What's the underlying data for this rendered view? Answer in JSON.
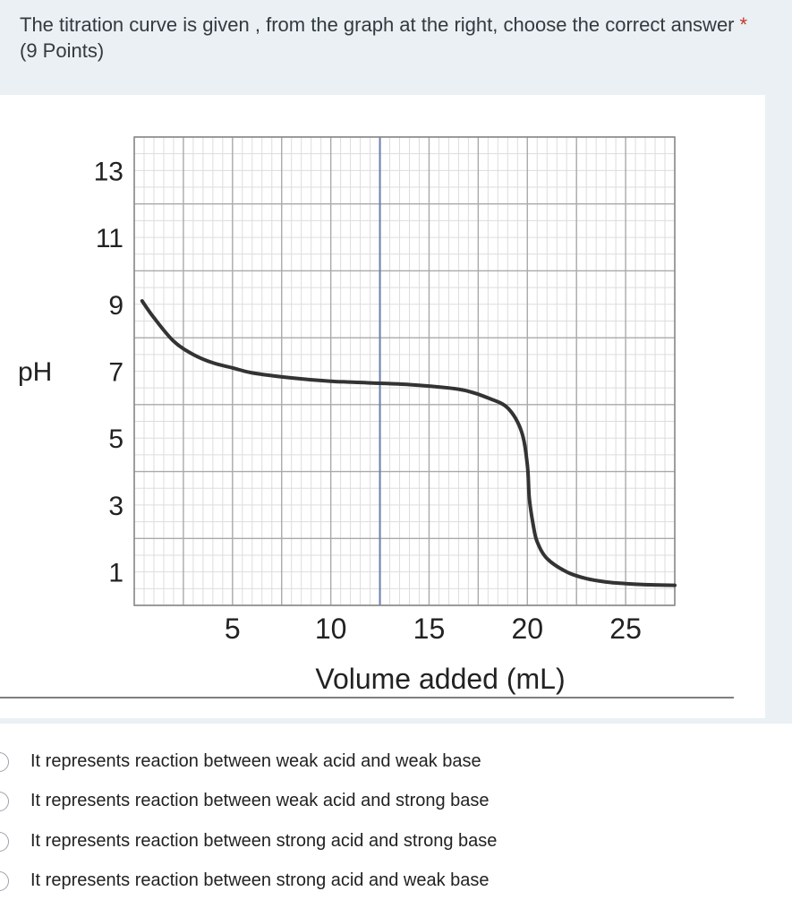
{
  "question": {
    "title": "The titration curve is given , from the graph at the right, choose the correct answer",
    "required_mark": "*",
    "points": "(9 Points)"
  },
  "chart_data": {
    "type": "line",
    "xlabel": "Volume added (mL)",
    "ylabel": "pH",
    "x_ticks": [
      "5",
      "10",
      "15",
      "20",
      "25"
    ],
    "y_ticks": [
      "13",
      "11",
      "9",
      "7",
      "5",
      "3",
      "1"
    ],
    "xlim": [
      0,
      27.5
    ],
    "ylim": [
      0,
      14
    ],
    "grid": true,
    "series": [
      {
        "x": [
          0.4,
          1,
          2,
          3,
          4,
          5,
          6,
          8,
          10,
          12,
          14,
          16,
          17,
          18,
          19,
          19.7,
          20,
          20.1,
          20.3,
          20.5,
          21,
          22,
          23,
          24,
          25,
          26,
          27.5
        ],
        "y": [
          9.1,
          8.6,
          7.9,
          7.5,
          7.25,
          7.1,
          6.95,
          6.8,
          6.7,
          6.65,
          6.6,
          6.5,
          6.4,
          6.2,
          5.9,
          5.2,
          4.2,
          3.2,
          2.4,
          1.9,
          1.4,
          1.0,
          0.8,
          0.7,
          0.65,
          0.62,
          0.6
        ],
        "color": "#333333"
      }
    ],
    "highlight_line_x": 12.5
  },
  "options": [
    {
      "label": "It represents reaction between weak acid and weak base"
    },
    {
      "label": "It represents reaction between weak acid and strong base"
    },
    {
      "label": "It represents reaction between strong acid and strong base"
    },
    {
      "label": "It represents reaction between strong acid and weak base"
    }
  ]
}
